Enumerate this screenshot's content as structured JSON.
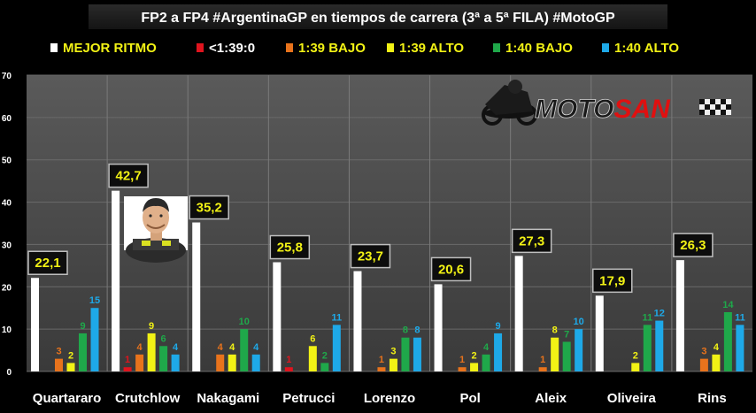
{
  "chart_data": {
    "type": "bar",
    "title": "FP2 a FP4 #ArgentinaGP en tiempos de carrera (3ª a 5ª FILA) #MotoGP",
    "categories": [
      "Quartararo",
      "Crutchlow",
      "Nakagami",
      "Petrucci",
      "Lorenzo",
      "Pol",
      "Aleix",
      "Oliveira",
      "Rins"
    ],
    "ylim": [
      0,
      70
    ],
    "yticks": [
      0,
      10,
      20,
      30,
      40,
      50,
      60,
      70
    ],
    "grid": true,
    "legend_position": "top",
    "series": [
      {
        "name": "MEJOR RITMO",
        "color": "#ffffff",
        "values": [
          22.1,
          42.7,
          35.2,
          25.8,
          23.7,
          20.6,
          27.3,
          17.9,
          26.3
        ],
        "labels": [
          "22,1",
          "42,7",
          "35,2",
          "25,8",
          "23,7",
          "20,6",
          "27,3",
          "17,9",
          "26,3"
        ]
      },
      {
        "name": "<1:39:0",
        "color": "#e0141e",
        "values": [
          0,
          1,
          0,
          1,
          0,
          0,
          0,
          0,
          0
        ]
      },
      {
        "name": "1:39 BAJO",
        "color": "#e8731c",
        "values": [
          3,
          4,
          4,
          0,
          1,
          1,
          1,
          0,
          3
        ]
      },
      {
        "name": "1:39 ALTO",
        "color": "#f2f215",
        "values": [
          2,
          9,
          4,
          6,
          3,
          2,
          8,
          2,
          4
        ]
      },
      {
        "name": "1:40 BAJO",
        "color": "#1fa84a",
        "values": [
          9,
          6,
          10,
          2,
          8,
          4,
          7,
          11,
          14
        ]
      },
      {
        "name": "1:40 ALTO",
        "color": "#1ea9e8",
        "values": [
          15,
          4,
          4,
          11,
          8,
          9,
          10,
          12,
          11
        ]
      }
    ]
  },
  "logo": {
    "text_dark": "MOTO",
    "text_red": "SAN"
  }
}
